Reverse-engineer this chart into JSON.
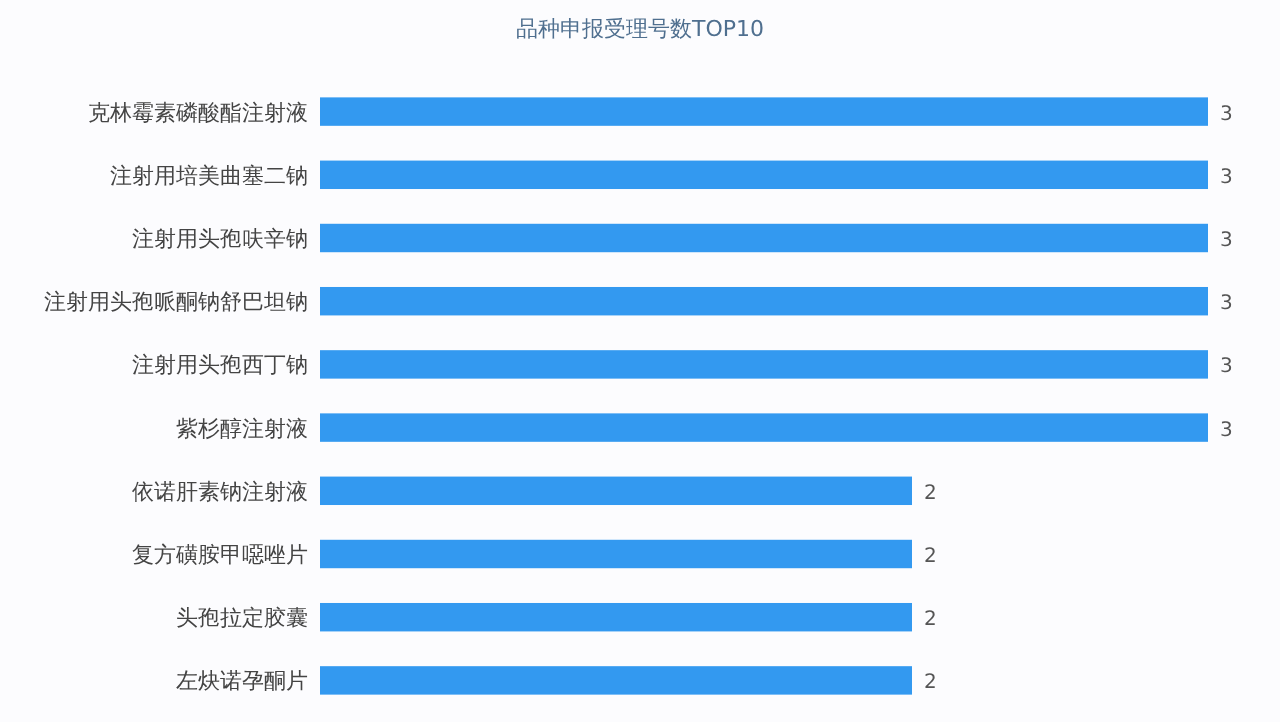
{
  "chart_data": {
    "type": "bar",
    "orientation": "horizontal",
    "title": "品种申报受理号数TOP10",
    "categories": [
      "克林霉素磷酸酯注射液",
      "注射用培美曲塞二钠",
      "注射用头孢呋辛钠",
      "注射用头孢哌酮钠舒巴坦钠",
      "注射用头孢西丁钠",
      "紫杉醇注射液",
      "依诺肝素钠注射液",
      "复方磺胺甲噁唑片",
      "头孢拉定胶囊",
      "左炔诺孕酮片"
    ],
    "values": [
      3,
      3,
      3,
      3,
      3,
      3,
      2,
      2,
      2,
      2
    ],
    "color": "#3399f0",
    "data_labels": true
  }
}
